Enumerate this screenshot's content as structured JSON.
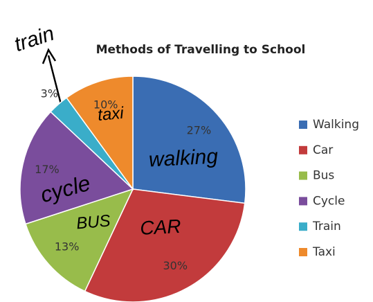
{
  "chart_data": {
    "type": "pie",
    "title": "Methods of Travelling to School",
    "categories": [
      "Walking",
      "Car",
      "Bus",
      "Cycle",
      "Train",
      "Taxi"
    ],
    "values": [
      27,
      30,
      13,
      17,
      3,
      10
    ],
    "value_labels": [
      "27%",
      "30%",
      "13%",
      "17%",
      "3%",
      "10%"
    ],
    "colors": [
      "#3a6db3",
      "#c23b3c",
      "#98bc4b",
      "#7a4d9c",
      "#3aadc9",
      "#ee8a2c"
    ],
    "legend": "right",
    "annotations": [
      "train",
      "taxi",
      "walking",
      "CAR",
      "BUS",
      "cycle"
    ]
  }
}
